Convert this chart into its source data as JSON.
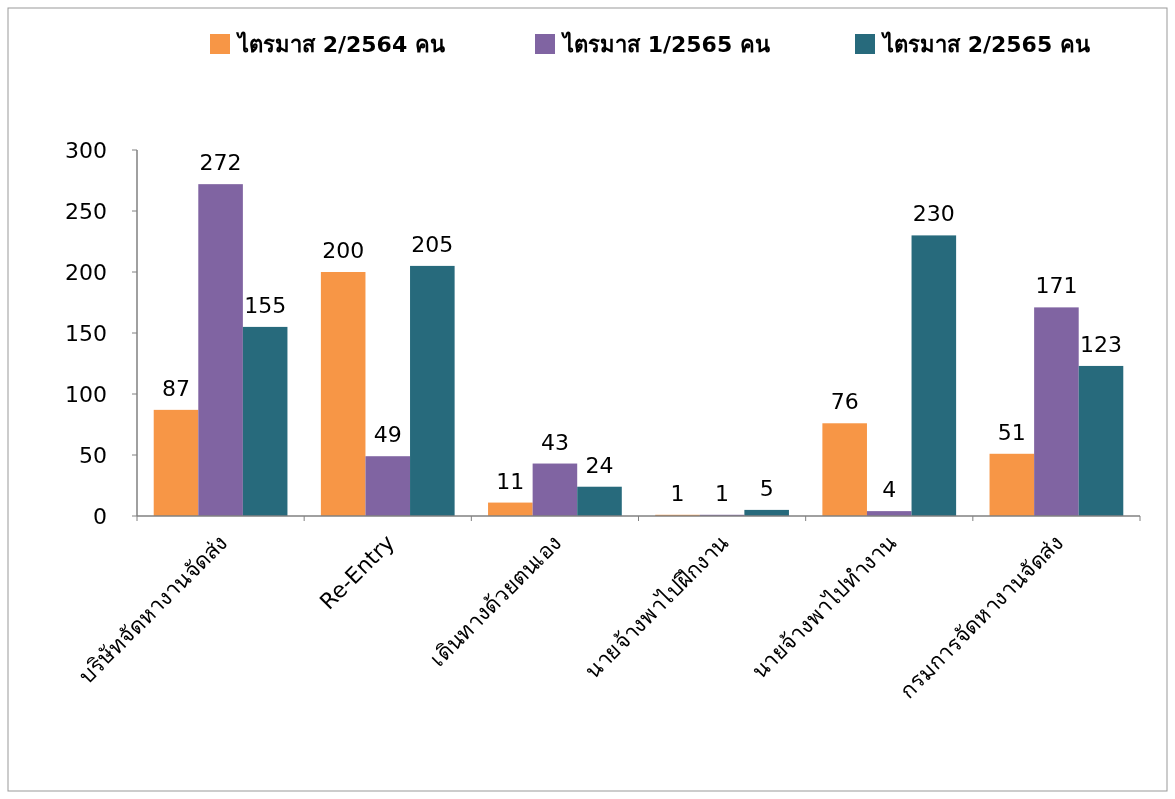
{
  "chart_data": {
    "type": "bar",
    "categories": [
      "บริษัทจัดหางานจัดส่ง",
      "Re-Entry",
      "เดินทางด้วยตนเอง",
      "นายจ้างพาไปฝึกงาน",
      "นายจ้างพาไปทำงาน",
      "กรมการจัดหางานจัดส่ง"
    ],
    "series": [
      {
        "name": "ไตรมาส 2/2564 คน",
        "color": "#f79646",
        "values": [
          87,
          200,
          11,
          1,
          76,
          51
        ]
      },
      {
        "name": "ไตรมาส 1/2565 คน",
        "color": "#8064a2",
        "values": [
          272,
          49,
          43,
          1,
          4,
          171
        ]
      },
      {
        "name": "ไตรมาส 2/2565 คน",
        "color": "#276a7c",
        "values": [
          155,
          205,
          24,
          5,
          230,
          123
        ]
      }
    ],
    "ylim": [
      0,
      300
    ],
    "yticks": [
      0,
      50,
      100,
      150,
      200,
      250,
      300
    ],
    "data_labels": true,
    "legend": "top",
    "grid": false
  }
}
